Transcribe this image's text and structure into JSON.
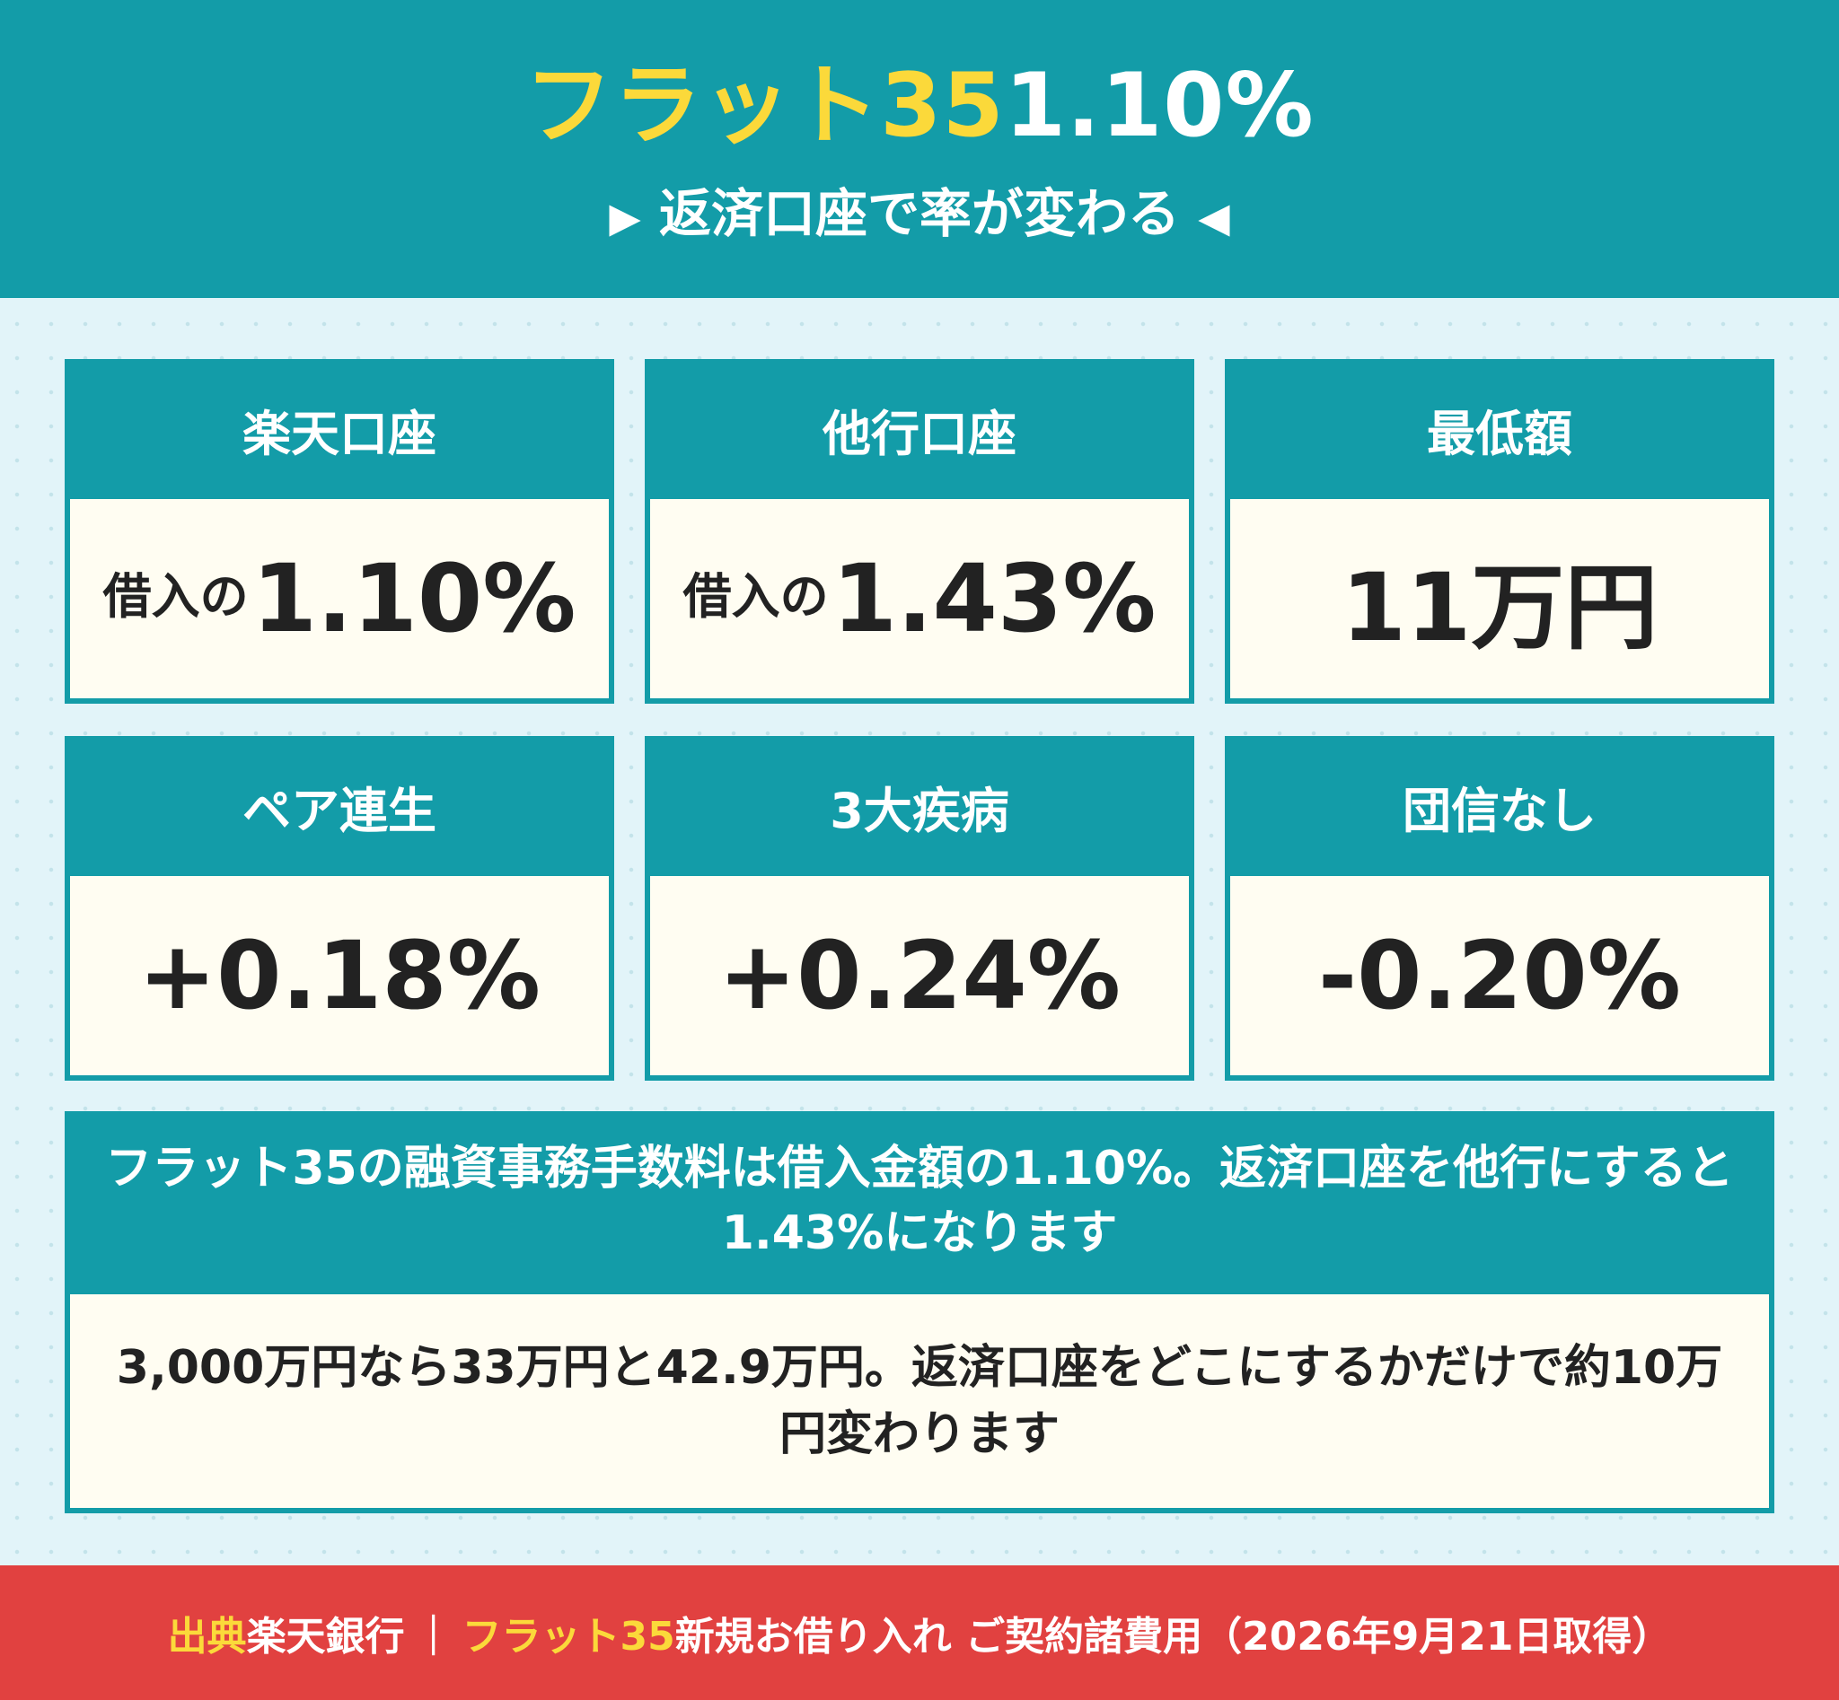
{
  "header": {
    "title_accent": "フラット35",
    "title_value": "1.10%",
    "arrow_left": "▶",
    "subtitle": "返済口座で率が変わる",
    "arrow_right": "◀"
  },
  "cards": [
    {
      "label": "楽天口座",
      "prefix": "借入の",
      "value": "1.10%"
    },
    {
      "label": "他行口座",
      "prefix": "借入の",
      "value": "1.43%"
    },
    {
      "label": "最低額",
      "prefix": "",
      "value": "11万円"
    },
    {
      "label": "ペア連生",
      "prefix": "",
      "value": "+0.18%"
    },
    {
      "label": "3大疾病",
      "prefix": "",
      "value": "+0.24%"
    },
    {
      "label": "団信なし",
      "prefix": "",
      "value": "-0.20%"
    }
  ],
  "note": {
    "heading": "フラット35の融資事務手数料は借入金額の1.10%。返済口座を他行にすると1.43%になります",
    "body": "3,000万円なら33万円と42.9万円。返済口座をどこにするかだけで約10万円変わります"
  },
  "footer": {
    "source_label": "出典",
    "source_name": "楽天銀行",
    "separator": "｜",
    "product": "フラット35",
    "page_title": "新規お借り入れ ご契約諸費用",
    "retrieved": "（2026年9月21日取得）"
  },
  "colors": {
    "teal": "#139ca8",
    "accent_yellow": "#fbd93a",
    "card_body": "#fffdf2",
    "footer_red": "#e14140",
    "background": "#e2f4f9"
  }
}
